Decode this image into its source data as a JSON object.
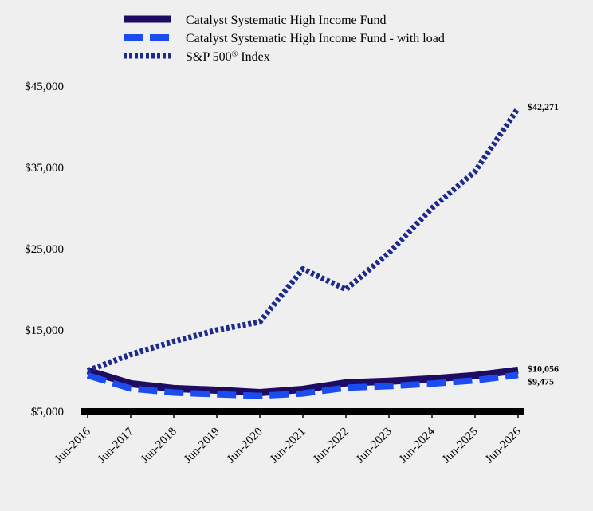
{
  "chart_data": {
    "type": "line",
    "categories": [
      "Jun-2016",
      "Jun-2017",
      "Jun-2018",
      "Jun-2019",
      "Jun-2020",
      "Jun-2021",
      "Jun-2022",
      "Jun-2023",
      "Jun-2024",
      "Jun-2025",
      "Jun-2026"
    ],
    "ylim": [
      5000,
      45000
    ],
    "yticks": [
      5000,
      15000,
      25000,
      35000,
      45000
    ],
    "ytick_labels": [
      "$5,000",
      "$15,000",
      "$25,000",
      "$35,000",
      "$45,000"
    ],
    "grid": false,
    "legend_position": "top",
    "series": [
      {
        "name": "Catalyst Systematic High Income Fund",
        "values": [
          10000,
          8400,
          7800,
          7600,
          7300,
          7700,
          8500,
          8700,
          9000,
          9400,
          10056
        ],
        "end_label": "$10,056",
        "color": "#1e0b64",
        "style": "solid"
      },
      {
        "name": "Catalyst Systematic High Income Fund - with load",
        "values": [
          9425,
          7800,
          7300,
          7100,
          6900,
          7200,
          7900,
          8100,
          8400,
          8800,
          9475
        ],
        "end_label": "$9,475",
        "color": "#1a4cf0",
        "style": "dashed"
      },
      {
        "name": "S&P 500",
        "name_sup": "®",
        "name_suffix": " Index",
        "values": [
          10000,
          12000,
          13600,
          15000,
          16000,
          22500,
          20000,
          24500,
          30000,
          34500,
          42271
        ],
        "end_label": "$42,271",
        "color": "#1c2a8c",
        "style": "dotted"
      }
    ]
  }
}
